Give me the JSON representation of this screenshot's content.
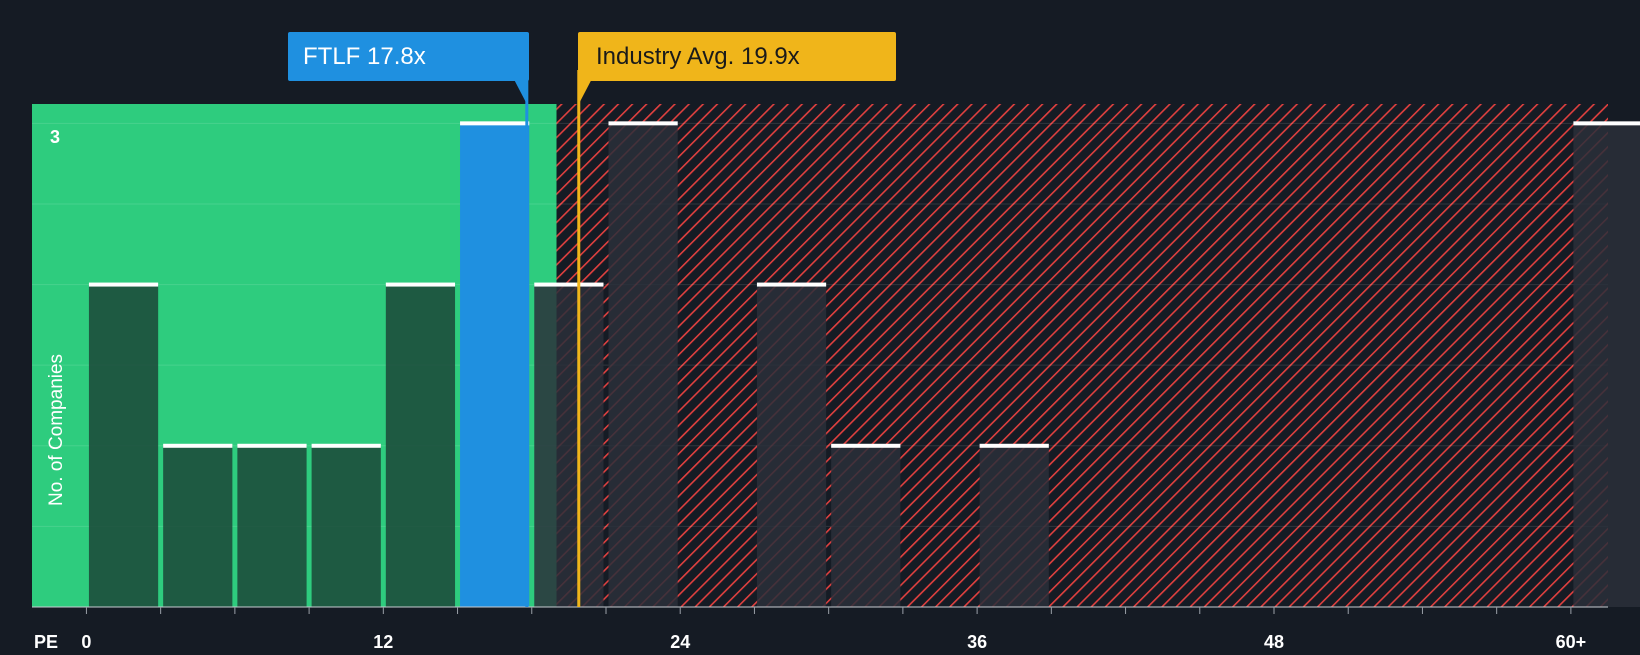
{
  "colors": {
    "background": "#151b24",
    "undervalued_zone": "#2ecc7e",
    "overvalued_hatch": "#e0403f",
    "company_bar": "#1f90e0",
    "industry_marker": "#f0b51a",
    "bar_dark": "#1d4a3a",
    "bar_shadow": "#2a2f3a"
  },
  "chart_data": {
    "type": "bar",
    "title": "",
    "xlabel": "PE",
    "ylabel": "No. of Companies",
    "bins": [
      {
        "from": 0,
        "to": 3,
        "count": 2
      },
      {
        "from": 3,
        "to": 6,
        "count": 1
      },
      {
        "from": 6,
        "to": 9,
        "count": 1
      },
      {
        "from": 9,
        "to": 12,
        "count": 1
      },
      {
        "from": 12,
        "to": 15,
        "count": 2
      },
      {
        "from": 15,
        "to": 18,
        "count": 3,
        "highlight": true
      },
      {
        "from": 18,
        "to": 21,
        "count": 2
      },
      {
        "from": 21,
        "to": 24,
        "count": 3
      },
      {
        "from": 24,
        "to": 27,
        "count": 0
      },
      {
        "from": 27,
        "to": 30,
        "count": 2
      },
      {
        "from": 30,
        "to": 33,
        "count": 1
      },
      {
        "from": 33,
        "to": 36,
        "count": 0
      },
      {
        "from": 36,
        "to": 39,
        "count": 1
      },
      {
        "from": 39,
        "to": 60,
        "count": 0
      },
      {
        "from": 60,
        "to": 63,
        "count": 3
      }
    ],
    "x_ticks": [
      {
        "value": 0,
        "label": "0"
      },
      {
        "value": 12,
        "label": "12"
      },
      {
        "value": 24,
        "label": "24"
      },
      {
        "value": 36,
        "label": "36"
      },
      {
        "value": 48,
        "label": "48"
      },
      {
        "value": 60,
        "label": "60+"
      }
    ],
    "xlim": [
      -2.2,
      61.5
    ],
    "ylim": [
      0,
      3.12
    ],
    "y_max_label": "3",
    "undervalued_to": 19,
    "company": {
      "label": "FTLF 17.8x",
      "value": 17.8
    },
    "industry": {
      "label": "Industry Avg. 19.9x",
      "value": 19.9
    }
  }
}
